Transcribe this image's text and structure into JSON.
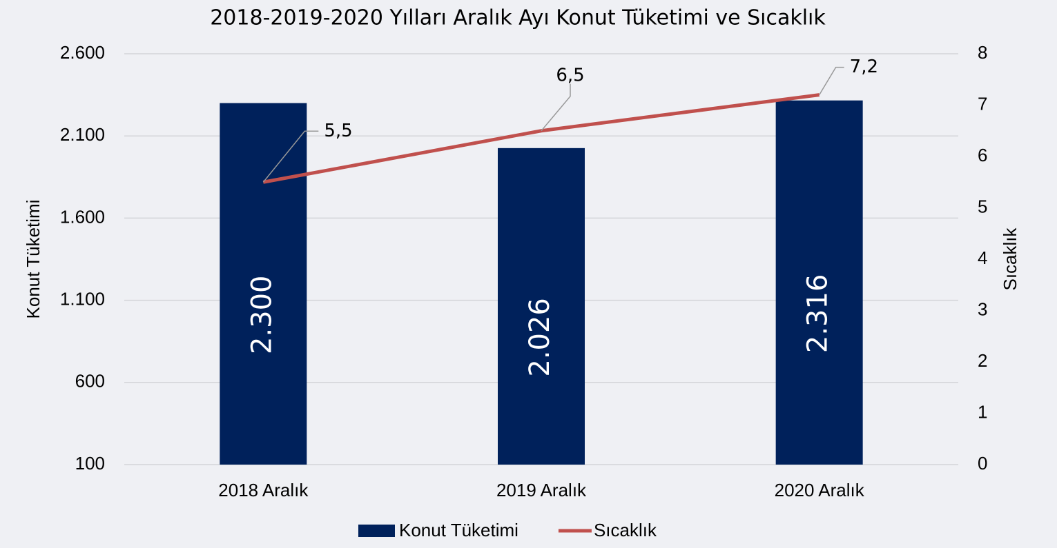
{
  "chart_data": {
    "type": "bar",
    "title": "2018-2019-2020 Yılları Aralık Ayı Konut Tüketimi ve Sıcaklık",
    "categories": [
      "2018 Aralık",
      "2019 Aralık",
      "2020 Aralık"
    ],
    "series": [
      {
        "name": "Konut Tüketimi",
        "type": "bar",
        "color": "#00215b",
        "values": [
          2300,
          2026,
          2316
        ],
        "value_labels": [
          "2.300",
          "2.026",
          "2.316"
        ]
      },
      {
        "name": "Sıcaklık",
        "type": "line",
        "axis": "y2",
        "color": "#c0504d",
        "values": [
          5.5,
          6.5,
          7.2
        ],
        "value_labels": [
          "5,5",
          "6,5",
          "7,2"
        ]
      }
    ],
    "y_label": "Konut Tüketimi",
    "y2_label": "Sıcaklık",
    "ylim": [
      100,
      2600
    ],
    "yticks": [
      100,
      600,
      {
        "value": 1100,
        "label": "1.100"
      },
      {
        "value": 1600,
        "label": "1.600"
      },
      {
        "value": 2100,
        "label": "2.100"
      },
      {
        "value": 2600,
        "label": "2.600"
      }
    ],
    "y2lim": [
      0,
      8
    ],
    "y2ticks": [
      0,
      1,
      2,
      3,
      4,
      5,
      6,
      7,
      8
    ],
    "grid": true,
    "legend": "bottom"
  }
}
